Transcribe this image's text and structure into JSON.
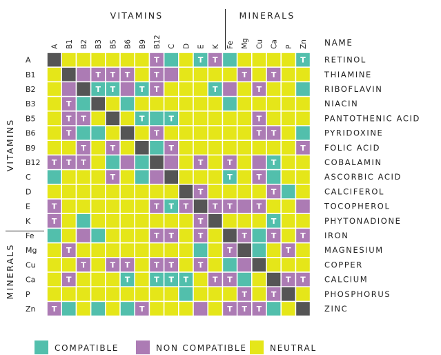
{
  "chart_data": {
    "type": "heatmap",
    "groups": {
      "vitamins": "VITAMINS",
      "minerals": "MINERALS"
    },
    "name_header": "NAME",
    "columns": [
      "A",
      "B1",
      "B2",
      "B3",
      "B5",
      "B6",
      "B9",
      "B12",
      "C",
      "D",
      "E",
      "K",
      "Fe",
      "Mg",
      "Cu",
      "Ca",
      "P",
      "Zn"
    ],
    "rows": [
      "A",
      "B1",
      "B2",
      "B3",
      "B5",
      "B6",
      "B9",
      "B12",
      "C",
      "D",
      "E",
      "K",
      "Fe",
      "Mg",
      "Cu",
      "Ca",
      "P",
      "Zn"
    ],
    "names": [
      "RETINOL",
      "THIAMINE",
      "RIBOFLAVIN",
      "NIACIN",
      "PANTOTHENIC ACID",
      "PYRIDOXINE",
      "FOLIC ACID",
      "COBALAMIN",
      "ASCORBIC ACID",
      "CALCIFEROL",
      "TOCOPHEROL",
      "PHYTONADIONE",
      "IRON",
      "MAGNESIUM",
      "COPPER",
      "CALCIUM",
      "PHOSPHORUS",
      "ZINC"
    ],
    "vitamin_count": 12,
    "mark_text": "T",
    "legend": [
      {
        "key": "C",
        "label": "COMPATIBLE"
      },
      {
        "key": "N",
        "label": "NON COMPATIBLE"
      },
      {
        "key": "Y",
        "label": "NEUTRAL"
      }
    ],
    "colors": {
      "C": "#52bfac",
      "N": "#ac7bb4",
      "Y": "#e5e619",
      "X": "#555555"
    },
    "matrix": [
      "XYYYYYYNCYCNCYYYYC",
      "YXNNNNYNNYYYYNYNYY",
      "YNXCCNCNYYYCNYNYYC",
      "YNCXYCYYYYYYCYYYYY",
      "YNNYXYCCCYYYYYNYYY",
      "YNCCYXYNYYYYYYNNYC",
      "YYNYNYXCNYYYYYYYYN",
      "NNNYCNCXNYNYNYNCYY",
      "CYYYNYCNXYYYCYNCYY",
      "YYYYYYYYYXNYYYYNCY",
      "NYYYYYYNCNXNNNNYYN",
      "NYCYYYYYYYNXYYYCYY",
      "CYNCYYYNNYNYXNCNYN",
      "YNYYYYYYYYCYNXCYNY",
      "YYNYNNYNNYNYCNXYYY",
      "YNYYYCYCCCYNNCYXNN",
      "YYYYYYYYYCYYYNYNXY",
      "NCYCYCNYYYNYNNNCYX"
    ],
    "t_marks": [
      "...........T......T",
      ".......T......T..T..",
      "...............T....",
      "..................",
      "..................",
      ".................."
    ],
    "t_cells": [
      [
        0,
        7
      ],
      [
        0,
        10
      ],
      [
        0,
        11
      ],
      [
        0,
        17
      ],
      [
        1,
        3
      ],
      [
        1,
        4
      ],
      [
        1,
        5
      ],
      [
        1,
        7
      ],
      [
        1,
        13
      ],
      [
        1,
        15
      ],
      [
        2,
        3
      ],
      [
        2,
        4
      ],
      [
        2,
        6
      ],
      [
        2,
        7
      ],
      [
        2,
        11
      ],
      [
        2,
        14
      ],
      [
        3,
        1
      ],
      [
        4,
        1
      ],
      [
        4,
        2
      ],
      [
        4,
        6
      ],
      [
        4,
        8
      ],
      [
        4,
        14
      ],
      [
        5,
        1
      ],
      [
        5,
        7
      ],
      [
        5,
        14
      ],
      [
        5,
        15
      ],
      [
        6,
        2
      ],
      [
        6,
        4
      ],
      [
        6,
        8
      ],
      [
        6,
        17
      ],
      [
        7,
        0
      ],
      [
        7,
        1
      ],
      [
        7,
        2
      ],
      [
        7,
        7
      ],
      [
        7,
        10
      ],
      [
        7,
        12
      ],
      [
        7,
        15
      ],
      [
        8,
        4
      ],
      [
        8,
        12
      ],
      [
        8,
        14
      ],
      [
        9,
        10
      ],
      [
        9,
        15
      ],
      [
        10,
        0
      ],
      [
        10,
        7
      ],
      [
        10,
        8
      ],
      [
        10,
        9
      ],
      [
        10,
        11
      ],
      [
        10,
        12
      ],
      [
        10,
        14
      ],
      [
        11,
        0
      ],
      [
        11,
        10
      ],
      [
        11,
        15
      ],
      [
        12,
        7
      ],
      [
        12,
        8
      ],
      [
        12,
        10
      ],
      [
        12,
        13
      ],
      [
        12,
        15
      ],
      [
        12,
        17
      ],
      [
        13,
        1
      ],
      [
        13,
        12
      ],
      [
        13,
        16
      ],
      [
        14,
        2
      ],
      [
        14,
        4
      ],
      [
        14,
        5
      ],
      [
        14,
        7
      ],
      [
        14,
        8
      ],
      [
        14,
        10
      ],
      [
        14,
        14
      ],
      [
        15,
        1
      ],
      [
        15,
        5
      ],
      [
        15,
        7
      ],
      [
        15,
        8
      ],
      [
        15,
        9
      ],
      [
        15,
        11
      ],
      [
        15,
        12
      ],
      [
        15,
        16
      ],
      [
        15,
        17
      ],
      [
        16,
        13
      ],
      [
        16,
        15
      ],
      [
        17,
        0
      ],
      [
        17,
        6
      ],
      [
        17,
        12
      ],
      [
        17,
        13
      ],
      [
        17,
        14
      ],
      [
        17,
        17
      ]
    ]
  }
}
